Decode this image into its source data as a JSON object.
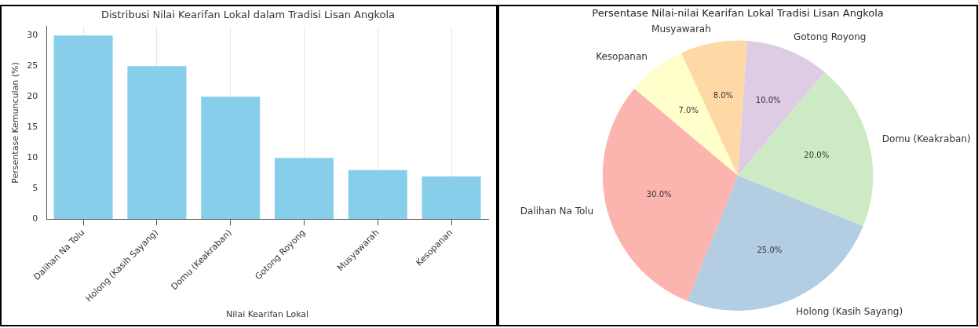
{
  "chart_data": [
    {
      "type": "bar",
      "title": "Distribusi Nilai Kearifan Lokal dalam Tradisi Lisan Angkola",
      "xlabel": "Nilai Kearifan Lokal",
      "ylabel": "Persentase Kemunculan (%)",
      "categories": [
        "Dalihan Na Tolu",
        "Holong (Kasih Sayang)",
        "Domu (Keakraban)",
        "Gotong Royong",
        "Musyawarah",
        "Kesopanan"
      ],
      "values": [
        30,
        25,
        20,
        10,
        8,
        7
      ],
      "color": "#87ceeb",
      "ylim": [
        0,
        31.5
      ],
      "yticks": [
        0,
        5,
        10,
        15,
        20,
        25,
        30
      ],
      "grid": "x"
    },
    {
      "type": "pie",
      "title": "Persentase Nilai-nilai Kearifan Lokal Tradisi Lisan Angkola",
      "categories": [
        "Dalihan Na Tolu",
        "Holong (Kasih Sayang)",
        "Domu (Keakraban)",
        "Gotong Royong",
        "Musyawarah",
        "Kesopanan"
      ],
      "values": [
        30,
        25,
        20,
        10,
        8,
        7
      ],
      "colors": [
        "#fbb4ae",
        "#b3cde3",
        "#ccebc5",
        "#decbe4",
        "#fed9a6",
        "#ffffcc"
      ],
      "value_labels": [
        "30.0%",
        "25.0%",
        "20.0%",
        "10.0%",
        "8.0%",
        "7.0%"
      ]
    }
  ]
}
